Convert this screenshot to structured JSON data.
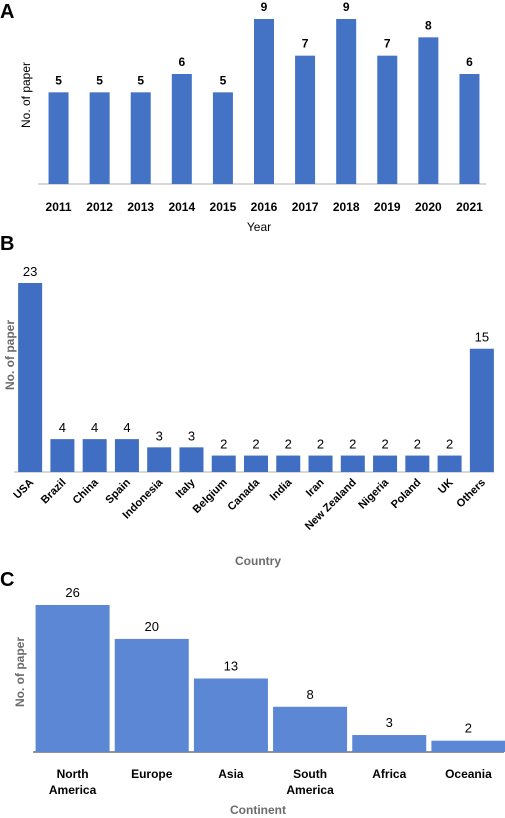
{
  "chart_data": [
    {
      "panel": "A",
      "type": "bar",
      "categories": [
        "2011",
        "2012",
        "2013",
        "2014",
        "2015",
        "2016",
        "2017",
        "2018",
        "2019",
        "2020",
        "2021"
      ],
      "values": [
        5,
        5,
        5,
        6,
        5,
        9,
        7,
        9,
        7,
        8,
        6
      ],
      "xlabel": "Year",
      "ylabel": "No. of paper",
      "ylim": [
        0,
        9
      ],
      "grid": false,
      "color": "#4472C4"
    },
    {
      "panel": "B",
      "type": "bar",
      "categories": [
        "USA",
        "Brazil",
        "China",
        "Spain",
        "Indonesia",
        "Italy",
        "Belgium",
        "Canada",
        "India",
        "Iran",
        "New Zealand",
        "Nigeria",
        "Poland",
        "UK",
        "Others"
      ],
      "values": [
        23,
        4,
        4,
        4,
        3,
        3,
        2,
        2,
        2,
        2,
        2,
        2,
        2,
        2,
        15
      ],
      "xlabel": "Country",
      "ylabel": "No. of paper",
      "ylim": [
        0,
        23
      ],
      "grid": false,
      "color": "#3F6EC2"
    },
    {
      "panel": "C",
      "type": "bar",
      "categories": [
        "North America",
        "Europe",
        "Asia",
        "South America",
        "Africa",
        "Oceania"
      ],
      "values": [
        26,
        20,
        13,
        8,
        3,
        2
      ],
      "xlabel": "Continent",
      "ylabel": "No. of paper",
      "ylim": [
        0,
        26
      ],
      "grid": false,
      "color": "#5B87D4"
    }
  ]
}
